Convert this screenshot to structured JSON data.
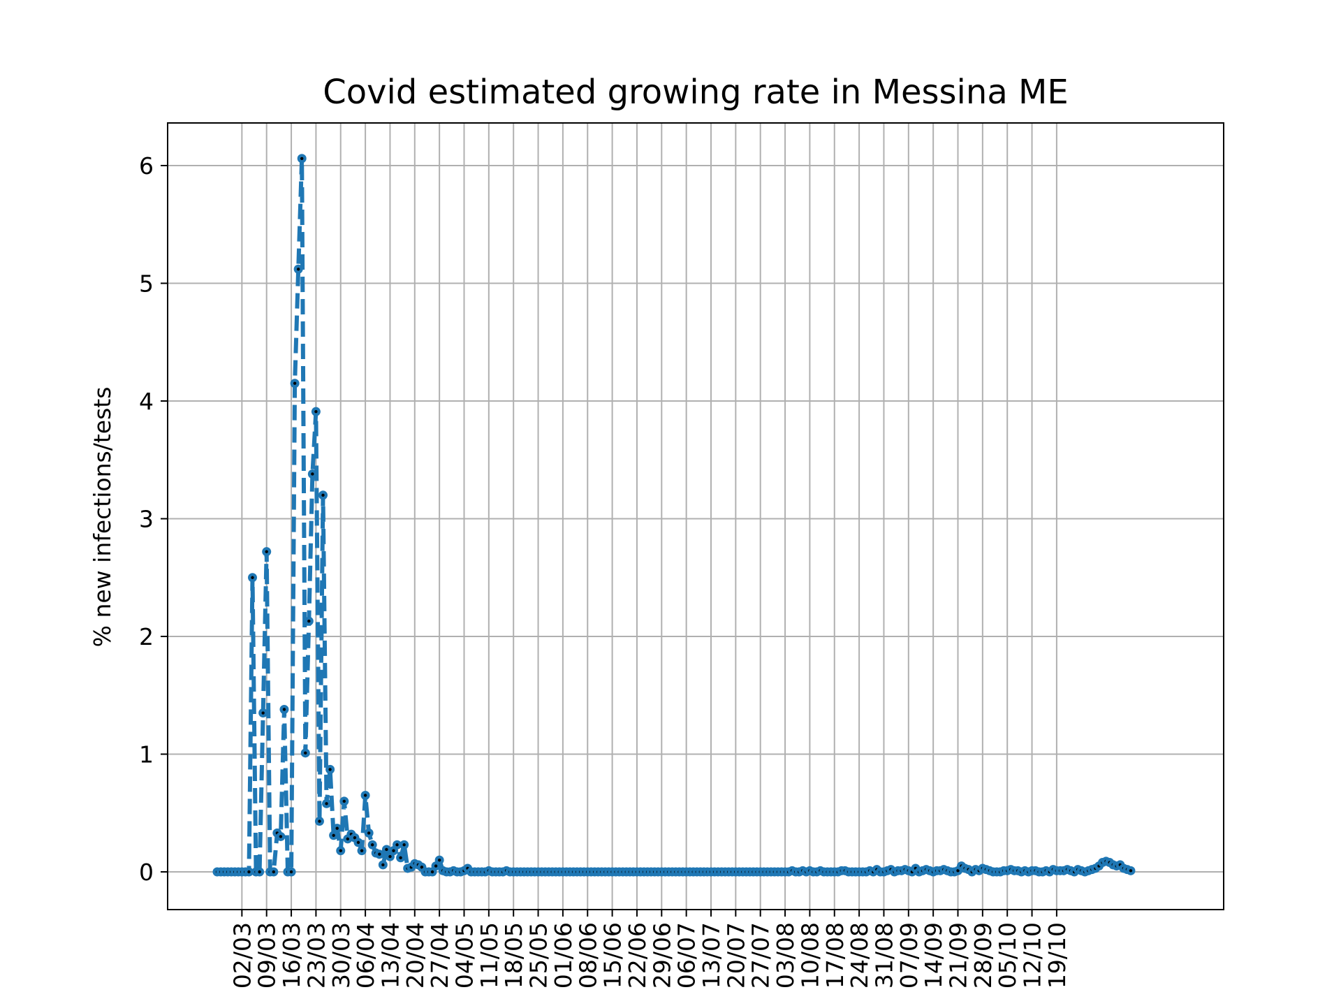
{
  "chart_data": {
    "type": "line",
    "title": "Covid estimated growing rate in Messina ME",
    "xlabel": "",
    "ylabel": "% new infections/tests",
    "x_tick_labels": [
      "02/03",
      "09/03",
      "16/03",
      "23/03",
      "30/03",
      "06/04",
      "13/04",
      "20/04",
      "27/04",
      "04/05",
      "11/05",
      "18/05",
      "25/05",
      "01/06",
      "08/06",
      "15/06",
      "22/06",
      "29/06",
      "06/07",
      "13/07",
      "20/07",
      "27/07",
      "03/08",
      "10/08",
      "17/08",
      "24/08",
      "31/08",
      "07/09",
      "14/09",
      "21/09",
      "28/09",
      "05/10",
      "12/10",
      "19/10"
    ],
    "y_ticks": [
      0,
      1,
      2,
      3,
      4,
      5,
      6
    ],
    "ylim": [
      -0.3,
      6.35
    ],
    "grid": true,
    "line_style": "dashed",
    "series_color": "#1f77b4",
    "marker_color": "#000000",
    "series": [
      {
        "start_date": "2020-02-24",
        "values": [
          0,
          0,
          0,
          0,
          0,
          0,
          0,
          0,
          0,
          0,
          2.5,
          0,
          0,
          1.35,
          2.72,
          0,
          0,
          0.33,
          0.3,
          1.38,
          0,
          0,
          4.15,
          5.12,
          6.06,
          1.01,
          2.13,
          3.38,
          3.91,
          0.43,
          3.2,
          0.58,
          0.87,
          0.31,
          0.37,
          0.18,
          0.6,
          0.28,
          0.32,
          0.29,
          0.25,
          0.18,
          0.65,
          0.33,
          0.23,
          0.16,
          0.15,
          0.06,
          0.19,
          0.13,
          0.18,
          0.23,
          0.12,
          0.23,
          0.03,
          0.04,
          0.07,
          0.06,
          0.04,
          0,
          0,
          0,
          0.05,
          0.1,
          0.01,
          0,
          0,
          0.01,
          0,
          0,
          0.01,
          0.03,
          0,
          0,
          0,
          0,
          0,
          0.01,
          0,
          0,
          0,
          0,
          0.01,
          0,
          0,
          0,
          0,
          0,
          0,
          0,
          0,
          0,
          0,
          0,
          0,
          0,
          0,
          0,
          0,
          0,
          0,
          0,
          0,
          0,
          0,
          0,
          0,
          0,
          0,
          0,
          0,
          0,
          0,
          0,
          0,
          0,
          0,
          0,
          0,
          0,
          0,
          0,
          0,
          0,
          0,
          0,
          0,
          0,
          0,
          0,
          0,
          0,
          0,
          0,
          0,
          0,
          0,
          0,
          0,
          0,
          0,
          0,
          0,
          0,
          0,
          0,
          0,
          0,
          0,
          0,
          0,
          0,
          0,
          0,
          0,
          0,
          0,
          0,
          0,
          0,
          0,
          0,
          0,
          0.01,
          0,
          0,
          0.01,
          0,
          0.01,
          0,
          0,
          0.01,
          0,
          0,
          0,
          0,
          0,
          0.01,
          0.01,
          0,
          0,
          0,
          0,
          0,
          0,
          0.01,
          0,
          0.02,
          0,
          0,
          0.01,
          0.02,
          0,
          0.01,
          0.01,
          0.02,
          0.01,
          0,
          0.03,
          0,
          0.01,
          0.02,
          0.01,
          0,
          0.01,
          0.01,
          0.02,
          0.01,
          0,
          0,
          0.01,
          0.05,
          0.03,
          0.02,
          0,
          0.02,
          0.01,
          0.03,
          0.02,
          0.01,
          0,
          0,
          0,
          0.01,
          0.01,
          0.02,
          0.01,
          0.01,
          0,
          0.01,
          0,
          0.01,
          0.01,
          0,
          0,
          0.01,
          0,
          0.02,
          0.01,
          0.01,
          0.01,
          0.02,
          0.01,
          0,
          0.02,
          0.01,
          0,
          0.01,
          0.02,
          0.03,
          0.05,
          0.08,
          0.09,
          0.08,
          0.06,
          0.05,
          0.06,
          0.03,
          0.02,
          0.01
        ]
      }
    ]
  }
}
